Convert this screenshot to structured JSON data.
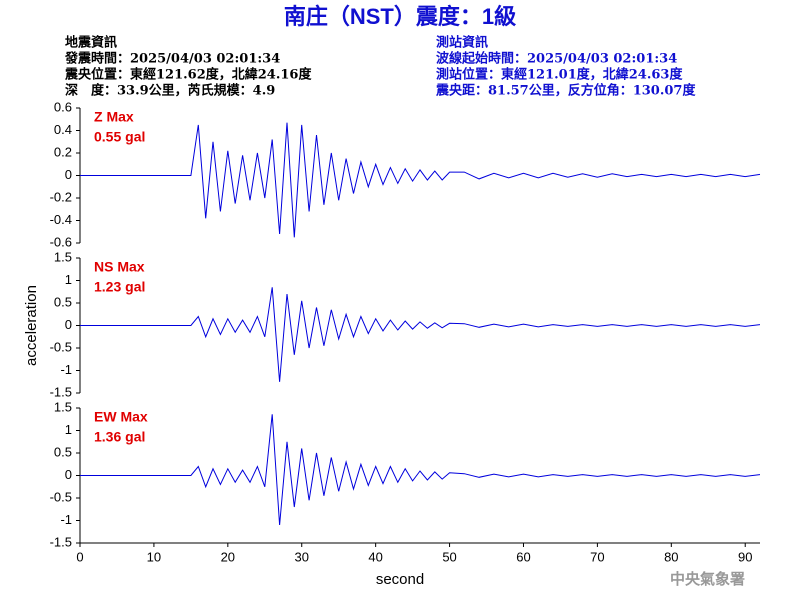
{
  "header": {
    "title": "南庄（NST）震度：1級",
    "left": [
      "地震資訊",
      "發震時間：2025/04/03 02:01:34",
      "震央位置：東經121.62度，北緯24.16度",
      "深　度：33.9公里，芮氏規模：4.9"
    ],
    "right": [
      "測站資訊",
      "波線起始時間：2025/04/03 02:01:34",
      "測站位置：東經121.01度，北緯24.63度",
      "震央距：81.57公里，反方位角：130.07度"
    ]
  },
  "footer": "中央氣象署",
  "chart_data": [
    {
      "type": "line",
      "annotations": [
        "Z Max",
        "0.55 gal"
      ],
      "color": "#0000dd",
      "x": [
        0,
        15,
        16,
        17,
        18,
        19,
        20,
        21,
        22,
        23,
        24,
        25,
        26,
        27,
        28,
        29,
        30,
        31,
        32,
        33,
        34,
        35,
        36,
        37,
        38,
        39,
        40,
        41,
        42,
        43,
        44,
        45,
        46,
        47,
        48,
        49,
        50,
        52,
        54,
        56,
        58,
        60,
        62,
        64,
        66,
        68,
        70,
        72,
        74,
        76,
        78,
        80,
        82,
        84,
        86,
        88,
        90,
        92
      ],
      "values": [
        0,
        0,
        0.45,
        -0.38,
        0.3,
        -0.32,
        0.22,
        -0.25,
        0.18,
        -0.22,
        0.2,
        -0.2,
        0.32,
        -0.52,
        0.47,
        -0.55,
        0.45,
        -0.32,
        0.36,
        -0.26,
        0.2,
        -0.22,
        0.15,
        -0.16,
        0.12,
        -0.1,
        0.1,
        -0.08,
        0.07,
        -0.07,
        0.06,
        -0.05,
        0.05,
        -0.04,
        0.04,
        -0.04,
        0.03,
        0.03,
        -0.03,
        0.02,
        -0.02,
        0.02,
        -0.02,
        0.02,
        -0.015,
        0.015,
        -0.015,
        0.015,
        -0.01,
        0.01,
        -0.01,
        0.01,
        -0.01,
        0.01,
        -0.01,
        0.01,
        -0.01,
        0.01
      ],
      "ylim": [
        -0.6,
        0.6
      ],
      "yticks": [
        -0.6,
        -0.4,
        -0.2,
        0,
        0.2,
        0.4,
        0.6
      ],
      "xlim": [
        0,
        92
      ]
    },
    {
      "type": "line",
      "annotations": [
        "NS Max",
        "1.23 gal"
      ],
      "color": "#0000dd",
      "ylabel": "acceleration",
      "x": [
        0,
        15,
        16,
        17,
        18,
        19,
        20,
        21,
        22,
        23,
        24,
        25,
        26,
        27,
        28,
        29,
        30,
        31,
        32,
        33,
        34,
        35,
        36,
        37,
        38,
        39,
        40,
        41,
        42,
        43,
        44,
        45,
        46,
        47,
        48,
        49,
        50,
        52,
        54,
        56,
        58,
        60,
        62,
        64,
        66,
        68,
        70,
        72,
        74,
        76,
        78,
        80,
        82,
        84,
        86,
        88,
        90,
        92
      ],
      "values": [
        0,
        0,
        0.2,
        -0.25,
        0.15,
        -0.2,
        0.15,
        -0.15,
        0.12,
        -0.15,
        0.2,
        -0.25,
        0.85,
        -1.25,
        0.7,
        -0.65,
        0.55,
        -0.5,
        0.4,
        -0.45,
        0.35,
        -0.3,
        0.25,
        -0.25,
        0.2,
        -0.18,
        0.15,
        -0.12,
        0.12,
        -0.1,
        0.1,
        -0.08,
        0.08,
        -0.06,
        0.06,
        -0.05,
        0.05,
        0.04,
        -0.04,
        0.03,
        -0.03,
        0.03,
        -0.03,
        0.02,
        -0.02,
        0.02,
        -0.02,
        0.02,
        -0.02,
        0.02,
        -0.02,
        0.02,
        -0.02,
        0.02,
        -0.02,
        0.02,
        -0.02,
        0.02
      ],
      "ylim": [
        -1.5,
        1.5
      ],
      "yticks": [
        -1.5,
        -1,
        -0.5,
        0,
        0.5,
        1,
        1.5
      ],
      "xlim": [
        0,
        92
      ]
    },
    {
      "type": "line",
      "annotations": [
        "EW Max",
        "1.36 gal"
      ],
      "color": "#0000dd",
      "xlabel": "second",
      "x": [
        0,
        15,
        16,
        17,
        18,
        19,
        20,
        21,
        22,
        23,
        24,
        25,
        26,
        27,
        28,
        29,
        30,
        31,
        32,
        33,
        34,
        35,
        36,
        37,
        38,
        39,
        40,
        41,
        42,
        43,
        44,
        45,
        46,
        47,
        48,
        49,
        50,
        52,
        54,
        56,
        58,
        60,
        62,
        64,
        66,
        68,
        70,
        72,
        74,
        76,
        78,
        80,
        82,
        84,
        86,
        88,
        90,
        92
      ],
      "values": [
        0,
        0,
        0.2,
        -0.25,
        0.15,
        -0.2,
        0.15,
        -0.15,
        0.12,
        -0.15,
        0.2,
        -0.25,
        1.36,
        -1.1,
        0.75,
        -0.7,
        0.6,
        -0.55,
        0.5,
        -0.45,
        0.4,
        -0.35,
        0.3,
        -0.3,
        0.25,
        -0.22,
        0.2,
        -0.18,
        0.2,
        -0.15,
        0.15,
        -0.12,
        0.1,
        -0.1,
        0.08,
        -0.08,
        0.06,
        0.04,
        -0.04,
        0.03,
        -0.03,
        0.03,
        -0.03,
        0.02,
        -0.02,
        0.02,
        -0.02,
        0.02,
        -0.02,
        0.02,
        -0.02,
        0.02,
        -0.02,
        0.02,
        -0.02,
        0.02,
        -0.02,
        0.02
      ],
      "ylim": [
        -1.5,
        1.5
      ],
      "yticks": [
        -1.5,
        -1,
        -0.5,
        0,
        0.5,
        1,
        1.5
      ],
      "xlim": [
        0,
        92
      ],
      "xticks": [
        0,
        10,
        20,
        30,
        40,
        50,
        60,
        70,
        80,
        90
      ]
    }
  ]
}
